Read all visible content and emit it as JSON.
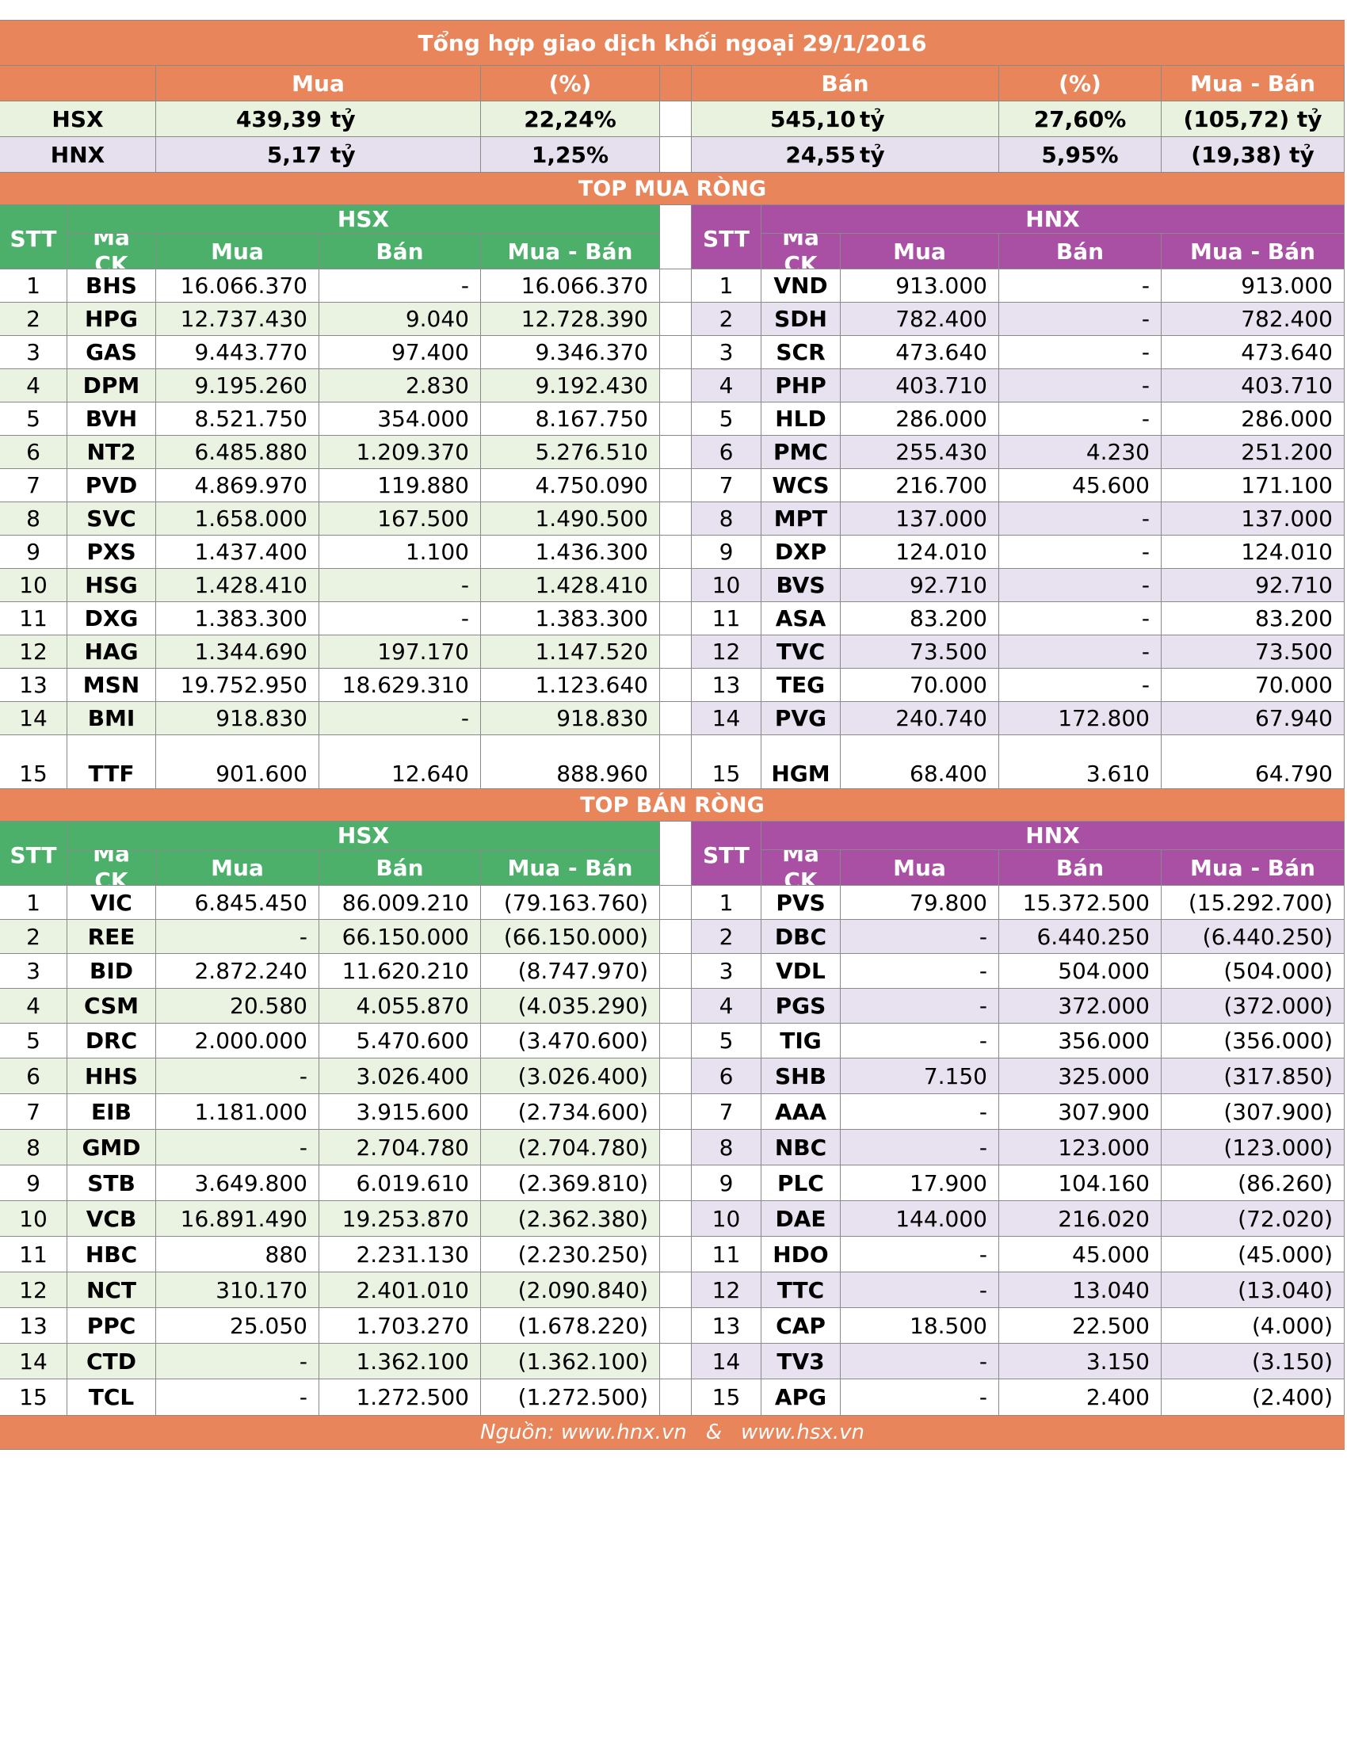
{
  "title": "Tổng hợp giao dịch khối ngoại 29/1/2016",
  "summary": {
    "headers": {
      "mua": "Mua",
      "pct1": "(%)",
      "ban": "Bán",
      "pct2": "(%)",
      "net": "Mua - Bán"
    },
    "rows": [
      {
        "exchange": "HSX",
        "mua": "439,39",
        "mua_unit": "tỷ",
        "mua_pct": "22,24%",
        "ban": "545,10",
        "ban_unit": "tỷ",
        "ban_pct": "27,60%",
        "net": "(105,72) tỷ"
      },
      {
        "exchange": "HNX",
        "mua": "5,17",
        "mua_unit": "tỷ",
        "mua_pct": "1,25%",
        "ban": "24,55",
        "ban_unit": "tỷ",
        "ban_pct": "5,95%",
        "net": "(19,38) tỷ"
      }
    ]
  },
  "top_buy": {
    "title": "TOP MUA RÒNG",
    "hsx_label": "HSX",
    "hnx_label": "HNX",
    "columns": {
      "stt": "STT",
      "ma_line1": "Mã",
      "ma_line2": "CK",
      "mua": "Mua",
      "ban": "Bán",
      "net": "Mua - Bán"
    },
    "hsx": [
      [
        "1",
        "BHS",
        "16.066.370",
        "-",
        "16.066.370"
      ],
      [
        "2",
        "HPG",
        "12.737.430",
        "9.040",
        "12.728.390"
      ],
      [
        "3",
        "GAS",
        "9.443.770",
        "97.400",
        "9.346.370"
      ],
      [
        "4",
        "DPM",
        "9.195.260",
        "2.830",
        "9.192.430"
      ],
      [
        "5",
        "BVH",
        "8.521.750",
        "354.000",
        "8.167.750"
      ],
      [
        "6",
        "NT2",
        "6.485.880",
        "1.209.370",
        "5.276.510"
      ],
      [
        "7",
        "PVD",
        "4.869.970",
        "119.880",
        "4.750.090"
      ],
      [
        "8",
        "SVC",
        "1.658.000",
        "167.500",
        "1.490.500"
      ],
      [
        "9",
        "PXS",
        "1.437.400",
        "1.100",
        "1.436.300"
      ],
      [
        "10",
        "HSG",
        "1.428.410",
        "-",
        "1.428.410"
      ],
      [
        "11",
        "DXG",
        "1.383.300",
        "-",
        "1.383.300"
      ],
      [
        "12",
        "HAG",
        "1.344.690",
        "197.170",
        "1.147.520"
      ],
      [
        "13",
        "MSN",
        "19.752.950",
        "18.629.310",
        "1.123.640"
      ],
      [
        "14",
        "BMI",
        "918.830",
        "-",
        "918.830"
      ],
      [
        "15",
        "TTF",
        "901.600",
        "12.640",
        "888.960"
      ]
    ],
    "hnx": [
      [
        "1",
        "VND",
        "913.000",
        "-",
        "913.000"
      ],
      [
        "2",
        "SDH",
        "782.400",
        "-",
        "782.400"
      ],
      [
        "3",
        "SCR",
        "473.640",
        "-",
        "473.640"
      ],
      [
        "4",
        "PHP",
        "403.710",
        "-",
        "403.710"
      ],
      [
        "5",
        "HLD",
        "286.000",
        "-",
        "286.000"
      ],
      [
        "6",
        "PMC",
        "255.430",
        "4.230",
        "251.200"
      ],
      [
        "7",
        "WCS",
        "216.700",
        "45.600",
        "171.100"
      ],
      [
        "8",
        "MPT",
        "137.000",
        "-",
        "137.000"
      ],
      [
        "9",
        "DXP",
        "124.010",
        "-",
        "124.010"
      ],
      [
        "10",
        "BVS",
        "92.710",
        "-",
        "92.710"
      ],
      [
        "11",
        "ASA",
        "83.200",
        "-",
        "83.200"
      ],
      [
        "12",
        "TVC",
        "73.500",
        "-",
        "73.500"
      ],
      [
        "13",
        "TEG",
        "70.000",
        "-",
        "70.000"
      ],
      [
        "14",
        "PVG",
        "240.740",
        "172.800",
        "67.940"
      ],
      [
        "15",
        "HGM",
        "68.400",
        "3.610",
        "64.790"
      ]
    ]
  },
  "top_sell": {
    "title": "TOP BÁN RÒNG",
    "hsx_label": "HSX",
    "hnx_label": "HNX",
    "columns": {
      "stt": "STT",
      "ma_line1": "Mã",
      "ma_line2": "CK",
      "mua": "Mua",
      "ban": "Bán",
      "net": "Mua - Bán"
    },
    "hsx": [
      [
        "1",
        "VIC",
        "6.845.450",
        "86.009.210",
        "(79.163.760)"
      ],
      [
        "2",
        "REE",
        "-",
        "66.150.000",
        "(66.150.000)"
      ],
      [
        "3",
        "BID",
        "2.872.240",
        "11.620.210",
        "(8.747.970)"
      ],
      [
        "4",
        "CSM",
        "20.580",
        "4.055.870",
        "(4.035.290)"
      ],
      [
        "5",
        "DRC",
        "2.000.000",
        "5.470.600",
        "(3.470.600)"
      ],
      [
        "6",
        "HHS",
        "-",
        "3.026.400",
        "(3.026.400)"
      ],
      [
        "7",
        "EIB",
        "1.181.000",
        "3.915.600",
        "(2.734.600)"
      ],
      [
        "8",
        "GMD",
        "-",
        "2.704.780",
        "(2.704.780)"
      ],
      [
        "9",
        "STB",
        "3.649.800",
        "6.019.610",
        "(2.369.810)"
      ],
      [
        "10",
        "VCB",
        "16.891.490",
        "19.253.870",
        "(2.362.380)"
      ],
      [
        "11",
        "HBC",
        "880",
        "2.231.130",
        "(2.230.250)"
      ],
      [
        "12",
        "NCT",
        "310.170",
        "2.401.010",
        "(2.090.840)"
      ],
      [
        "13",
        "PPC",
        "25.050",
        "1.703.270",
        "(1.678.220)"
      ],
      [
        "14",
        "CTD",
        "-",
        "1.362.100",
        "(1.362.100)"
      ],
      [
        "15",
        "TCL",
        "-",
        "1.272.500",
        "(1.272.500)"
      ]
    ],
    "hnx": [
      [
        "1",
        "PVS",
        "79.800",
        "15.372.500",
        "(15.292.700)"
      ],
      [
        "2",
        "DBC",
        "-",
        "6.440.250",
        "(6.440.250)"
      ],
      [
        "3",
        "VDL",
        "-",
        "504.000",
        "(504.000)"
      ],
      [
        "4",
        "PGS",
        "-",
        "372.000",
        "(372.000)"
      ],
      [
        "5",
        "TIG",
        "-",
        "356.000",
        "(356.000)"
      ],
      [
        "6",
        "SHB",
        "7.150",
        "325.000",
        "(317.850)"
      ],
      [
        "7",
        "AAA",
        "-",
        "307.900",
        "(307.900)"
      ],
      [
        "8",
        "NBC",
        "-",
        "123.000",
        "(123.000)"
      ],
      [
        "9",
        "PLC",
        "17.900",
        "104.160",
        "(86.260)"
      ],
      [
        "10",
        "DAE",
        "144.000",
        "216.020",
        "(72.020)"
      ],
      [
        "11",
        "HDO",
        "-",
        "45.000",
        "(45.000)"
      ],
      [
        "12",
        "TTC",
        "-",
        "13.040",
        "(13.040)"
      ],
      [
        "13",
        "CAP",
        "18.500",
        "22.500",
        "(4.000)"
      ],
      [
        "14",
        "TV3",
        "-",
        "3.150",
        "(3.150)"
      ],
      [
        "15",
        "APG",
        "-",
        "2.400",
        "(2.400)"
      ]
    ]
  },
  "footer": {
    "source_label": "Nguồn: www.hnx.vn",
    "sep": "&",
    "source2": "www.hsx.vn"
  },
  "colors": {
    "orange": "#e8855a",
    "green": "#4caf6a",
    "purple": "#a94fa4",
    "green_light": "#eaf3e2",
    "purple_light": "#e8e1ef"
  }
}
